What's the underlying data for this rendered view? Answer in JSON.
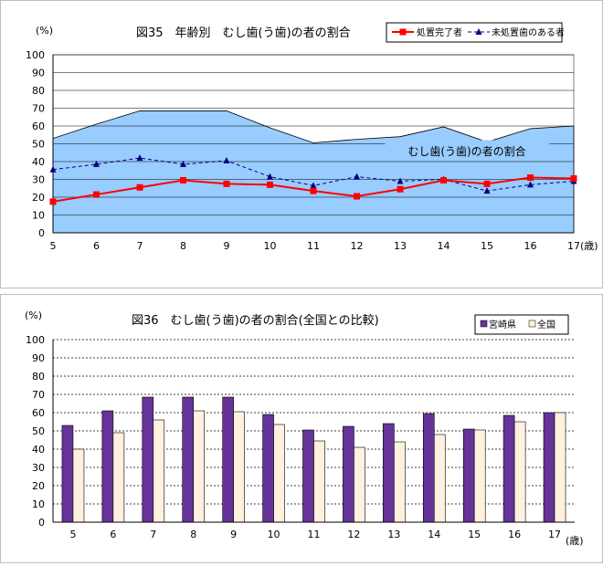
{
  "chart_data": [
    {
      "type": "line",
      "title": "図35　年齢別　むし歯(う歯)の者の割合",
      "ylabel": "(%)",
      "xlabel": "(歳)",
      "ylim": [
        0,
        100
      ],
      "yticks": [
        0,
        10,
        20,
        30,
        40,
        50,
        60,
        70,
        80,
        90,
        100
      ],
      "categories": [
        "5",
        "6",
        "7",
        "8",
        "9",
        "10",
        "11",
        "12",
        "13",
        "14",
        "15",
        "16",
        "17"
      ],
      "grid": true,
      "legend_position": "top-right",
      "series": [
        {
          "name": "処置完了者",
          "kind": "line",
          "marker": "square",
          "color": "#ff0000",
          "values": [
            17.5,
            21.5,
            25.5,
            29.5,
            27.5,
            27,
            23.5,
            20.5,
            24.5,
            29.5,
            27.5,
            31,
            30.5
          ]
        },
        {
          "name": "未処置歯のある者",
          "kind": "dashed-line",
          "marker": "triangle",
          "color": "#000080",
          "values": [
            35.5,
            38.5,
            42,
            38.5,
            40.5,
            31.5,
            26.5,
            31.5,
            29,
            30,
            23.5,
            27,
            29
          ]
        },
        {
          "name": "むし歯(う歯)の者の割合",
          "kind": "area",
          "color": "#99ccff",
          "values": [
            53,
            61,
            68.5,
            68.5,
            68.5,
            59,
            50.5,
            52.5,
            54,
            59.5,
            51,
            58.5,
            60
          ]
        }
      ],
      "annotation": "むし歯(う歯)の者の割合"
    },
    {
      "type": "bar",
      "title": "図36　むし歯(う歯)の者の割合(全国との比較)",
      "ylabel": "(%)",
      "xlabel": "(歳)",
      "ylim": [
        0,
        100
      ],
      "yticks": [
        0,
        10,
        20,
        30,
        40,
        50,
        60,
        70,
        80,
        90,
        100
      ],
      "categories": [
        "5",
        "6",
        "7",
        "8",
        "9",
        "10",
        "11",
        "12",
        "13",
        "14",
        "15",
        "16",
        "17"
      ],
      "grid": true,
      "legend_position": "top-right",
      "series": [
        {
          "name": "宮崎県",
          "color": "#663399",
          "values": [
            53,
            61,
            68.5,
            68.5,
            68.5,
            59,
            50.5,
            52.5,
            54,
            59.5,
            51,
            58.5,
            60
          ]
        },
        {
          "name": "全国",
          "color": "#fff0e0",
          "values": [
            40,
            49,
            56,
            61,
            60.5,
            53.5,
            44.5,
            41,
            44,
            48,
            50.5,
            55,
            60
          ]
        }
      ]
    }
  ]
}
